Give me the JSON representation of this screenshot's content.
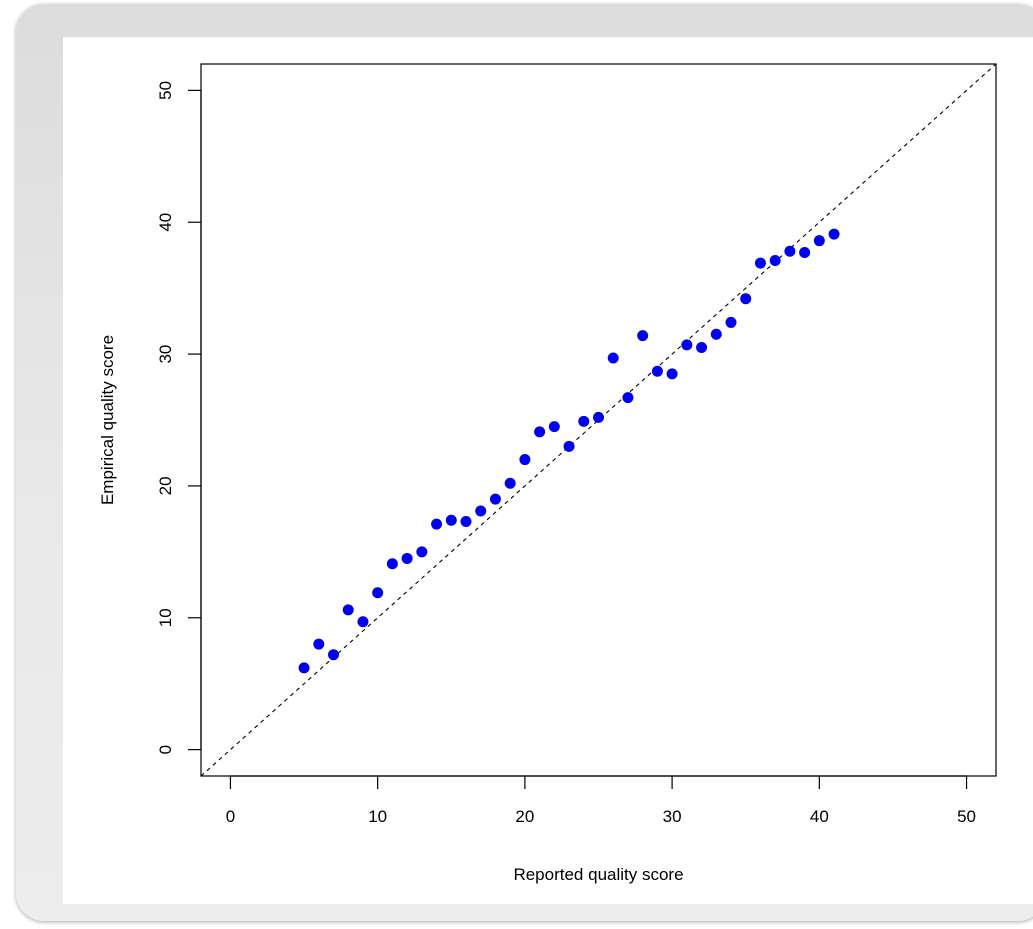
{
  "chart_data": {
    "type": "scatter",
    "title": "",
    "xlabel": "Reported quality score",
    "ylabel": "Empirical quality score",
    "xlim": [
      -2,
      52
    ],
    "ylim": [
      -2,
      52
    ],
    "x_ticks": [
      0,
      10,
      20,
      30,
      40,
      50
    ],
    "y_ticks": [
      0,
      10,
      20,
      30,
      40,
      50
    ],
    "grid": false,
    "legend": "none",
    "reference_line": {
      "style": "dashed",
      "slope": 1,
      "intercept": 0,
      "color": "#000000"
    },
    "point_color": "#0000ee",
    "series": [
      {
        "x": [
          5,
          6,
          7,
          8,
          9,
          10,
          11,
          12,
          13,
          14,
          15,
          16,
          17,
          18,
          19,
          20,
          21,
          22,
          23,
          24,
          25,
          26,
          27,
          28,
          29,
          30,
          31,
          32,
          33,
          34,
          35,
          36,
          37,
          38,
          39,
          40,
          41
        ],
        "y": [
          6.2,
          8.0,
          7.2,
          10.6,
          9.7,
          11.9,
          14.1,
          14.5,
          15.0,
          17.1,
          17.4,
          17.3,
          18.1,
          19.0,
          20.2,
          22.0,
          24.1,
          24.5,
          23.0,
          24.9,
          25.2,
          29.7,
          26.7,
          31.4,
          28.7,
          28.5,
          30.7,
          30.5,
          31.5,
          32.4,
          34.2,
          36.9,
          37.1,
          37.8,
          37.7,
          38.6,
          39.1
        ]
      }
    ]
  }
}
